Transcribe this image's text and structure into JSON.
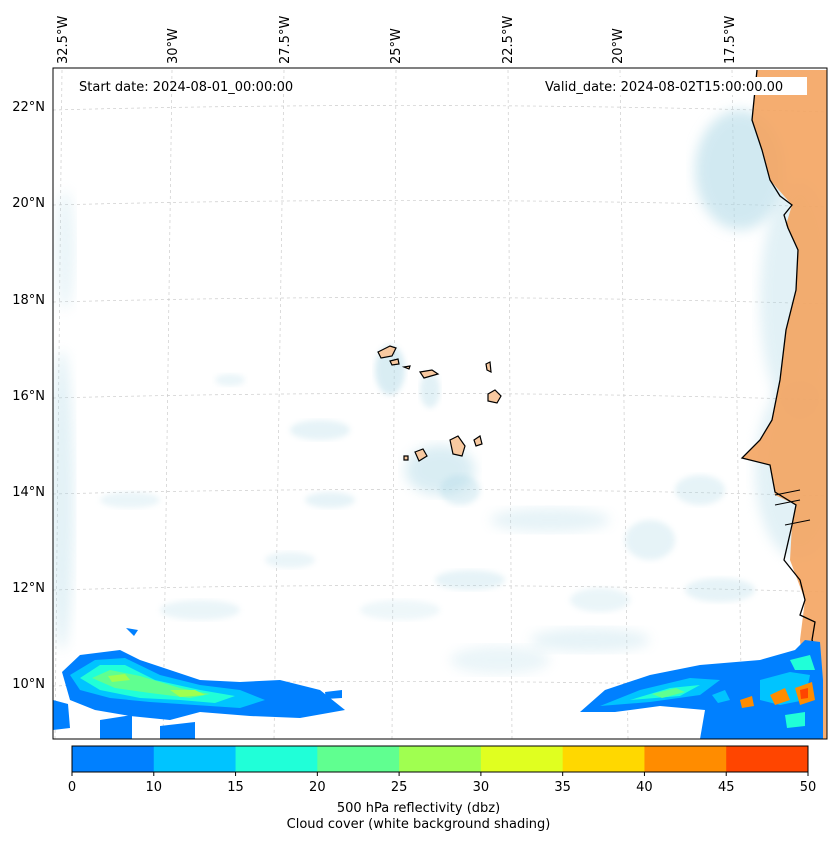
{
  "map": {
    "start_date": "Start date: 2024-08-01_00:00:00",
    "valid_date": "Valid_date: 2024-08-02T15:00:00.00",
    "lon_labels": [
      "32.5°W",
      "30°W",
      "27.5°W",
      "25°W",
      "22.5°W",
      "20°W",
      "17.5°W"
    ],
    "lat_labels": [
      "22°N",
      "20°N",
      "18°N",
      "16°N",
      "14°N",
      "12°N",
      "10°N"
    ],
    "land_color": "#f4a460",
    "island_color": "#f8c9a0",
    "cloud_color": "#add8e6"
  },
  "colorbar": {
    "ticks": [
      "0",
      "10",
      "15",
      "20",
      "25",
      "30",
      "35",
      "40",
      "45",
      "50"
    ],
    "colors": [
      "#0080ff",
      "#00c4ff",
      "#20ffd8",
      "#60ff90",
      "#a0ff50",
      "#e0ff20",
      "#ffd800",
      "#ff8c00",
      "#ff4500"
    ],
    "label_line1": "500 hPa reflectivity (dbz)",
    "label_line2": "Cloud cover (white background shading)"
  }
}
